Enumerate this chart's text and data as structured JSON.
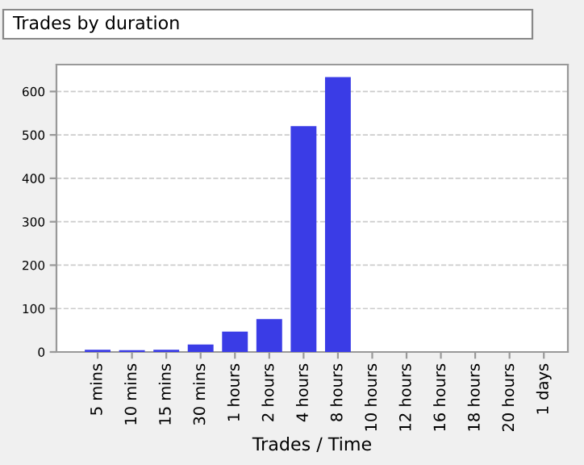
{
  "chart_data": {
    "type": "bar",
    "title": "Trades by duration",
    "xlabel": "Trades / Time",
    "categories": [
      "5 mins",
      "10 mins",
      "15 mins",
      "30 mins",
      "1 hours",
      "2 hours",
      "4 hours",
      "8 hours",
      "10 hours",
      "12 hours",
      "16 hours",
      "18 hours",
      "20 hours",
      "1 days"
    ],
    "values": [
      5,
      4,
      5,
      17,
      47,
      76,
      520,
      633,
      0,
      0,
      0,
      0,
      0,
      0
    ],
    "color": "#3a3ce6",
    "ylim": [
      0,
      662
    ],
    "yticks": [
      0,
      100,
      200,
      300,
      400,
      500,
      600
    ],
    "grid": "y",
    "legend": false
  }
}
